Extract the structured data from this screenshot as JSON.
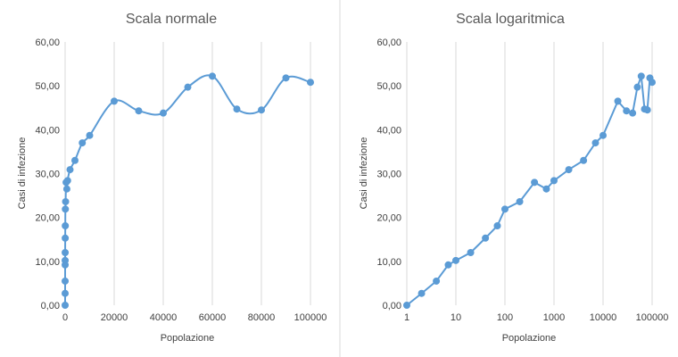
{
  "colors": {
    "series": "#5b9bd5",
    "grid": "#d9d9d9",
    "axis_text": "#404040",
    "title_text": "#595959"
  },
  "chart_data": [
    {
      "type": "scatter",
      "title": "Scala normale",
      "xlabel": "Popolazione",
      "ylabel": "Casi di infezione",
      "x_scale": "linear",
      "xlim": [
        0,
        100000
      ],
      "ylim": [
        0,
        60
      ],
      "x_ticks": [
        "0",
        "20000",
        "40000",
        "60000",
        "80000",
        "100000"
      ],
      "y_ticks": [
        "0,00",
        "10,00",
        "20,00",
        "30,00",
        "40,00",
        "50,00",
        "60,00"
      ],
      "grid": {
        "vertical": true,
        "horizontal": false
      },
      "line": "smoothed",
      "series": [
        {
          "x": [
            1,
            2,
            4,
            7,
            10,
            20,
            40,
            70,
            100,
            200,
            400,
            700,
            1000,
            2000,
            4000,
            7000,
            10000,
            20000,
            30000,
            40000,
            50000,
            60000,
            70000,
            80000,
            90000,
            100000
          ],
          "y": [
            0,
            2.7,
            5.5,
            9.2,
            10.2,
            12,
            15.3,
            18.1,
            21.9,
            23.6,
            28,
            26.5,
            28.4,
            30.9,
            33,
            37,
            38.7,
            46.5,
            44.3,
            43.8,
            49.7,
            52.2,
            44.7,
            44.5,
            51.8,
            50.8
          ]
        }
      ]
    },
    {
      "type": "scatter",
      "title": "Scala logaritmica",
      "xlabel": "Popolazione",
      "ylabel": "Casi di infezione",
      "x_scale": "log",
      "xlim": [
        1,
        100000
      ],
      "ylim": [
        0,
        60
      ],
      "x_ticks": [
        "1",
        "10",
        "100",
        "1000",
        "10000",
        "100000"
      ],
      "y_ticks": [
        "0,00",
        "10,00",
        "20,00",
        "30,00",
        "40,00",
        "50,00",
        "60,00"
      ],
      "grid": {
        "vertical": true,
        "horizontal": false
      },
      "line": "straight",
      "series": [
        {
          "x": [
            1,
            2,
            4,
            7,
            10,
            20,
            40,
            70,
            100,
            200,
            400,
            700,
            1000,
            2000,
            4000,
            7000,
            10000,
            20000,
            30000,
            40000,
            50000,
            60000,
            70000,
            80000,
            90000,
            100000
          ],
          "y": [
            0,
            2.7,
            5.5,
            9.2,
            10.2,
            12,
            15.3,
            18.1,
            21.9,
            23.6,
            28,
            26.5,
            28.4,
            30.9,
            33,
            37,
            38.7,
            46.5,
            44.3,
            43.8,
            49.7,
            52.2,
            44.7,
            44.5,
            51.8,
            50.8
          ]
        }
      ]
    }
  ]
}
